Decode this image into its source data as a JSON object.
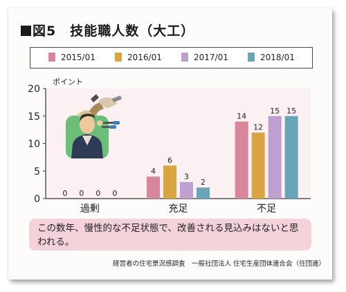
{
  "figure": {
    "number": "図5",
    "title": "技能職人数（大工）",
    "note": "この数年、慢性的な不足状態で、改善される見込みはないと思われる。",
    "source": "経営者の住宅景況感調査　一般社団法人 住宅生産団体連合会（住団連）"
  },
  "colors": {
    "2015/01": "#d8869c",
    "2016/01": "#d9a541",
    "2017/01": "#bf9fcf",
    "2018/01": "#69a5b9",
    "plot_bg": "#fbf0f2",
    "note_bg": "#f3d3d9"
  },
  "chart_data": {
    "type": "bar",
    "ylabel": "ポイント",
    "ylim": [
      0,
      20
    ],
    "yticks": [
      0,
      5,
      10,
      15,
      20
    ],
    "categories": [
      "過剰",
      "充足",
      "不足"
    ],
    "series": [
      {
        "name": "2015/01",
        "values": [
          0,
          4,
          14
        ]
      },
      {
        "name": "2016/01",
        "values": [
          0,
          6,
          12
        ]
      },
      {
        "name": "2017/01",
        "values": [
          0,
          3,
          15
        ]
      },
      {
        "name": "2018/01",
        "values": [
          0,
          2,
          15
        ]
      }
    ],
    "data_labels": true,
    "legend": "top",
    "grid": false
  }
}
